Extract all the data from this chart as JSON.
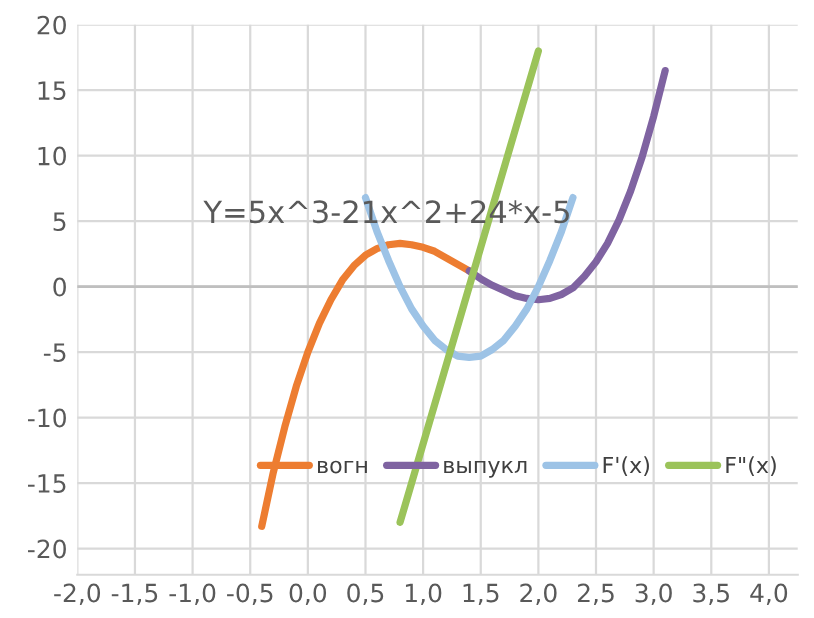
{
  "chart_data": {
    "type": "line",
    "annotations": [
      "Y=5x^3-21x^2+24*x-5"
    ],
    "xlim": [
      -2,
      4.25
    ],
    "ylim": [
      -22,
      20
    ],
    "xticks": [
      {
        "value": -2,
        "label": "-2,0"
      },
      {
        "value": -1.5,
        "label": "-1,5"
      },
      {
        "value": -1,
        "label": "-1,0"
      },
      {
        "value": -0.5,
        "label": "-0,5"
      },
      {
        "value": 0,
        "label": "0,0"
      },
      {
        "value": 0.5,
        "label": "0,5"
      },
      {
        "value": 1,
        "label": "1,0"
      },
      {
        "value": 1.5,
        "label": "1,5"
      },
      {
        "value": 2,
        "label": "2,0"
      },
      {
        "value": 2.5,
        "label": "2,5"
      },
      {
        "value": 3,
        "label": "3,0"
      },
      {
        "value": 3.5,
        "label": "3,5"
      },
      {
        "value": 4,
        "label": "4,0"
      }
    ],
    "yticks": [
      -20,
      -15,
      -10,
      -5,
      0,
      5,
      10,
      15,
      20
    ],
    "grid": true,
    "legend": "bottom right",
    "marker": "none",
    "line_style": "solid",
    "series": [
      {
        "name": "вогн",
        "color": "#ed7d31",
        "x": [
          -0.4,
          -0.3,
          -0.2,
          -0.1,
          0,
          0.1,
          0.2,
          0.3,
          0.4,
          0.5,
          0.6,
          0.7,
          0.8,
          0.9,
          1.0,
          1.1,
          1.2,
          1.3,
          1.4
        ],
        "values": [
          -18.3,
          -14.2,
          -10.7,
          -7.6,
          -5,
          -2.8,
          -1.0,
          0.5,
          1.6,
          2.4,
          2.9,
          3.2,
          3.3,
          3.2,
          3.0,
          2.7,
          2.2,
          1.7,
          1.2
        ]
      },
      {
        "name": "выпукл",
        "color": "#7f63a1",
        "x": [
          1.4,
          1.5,
          1.6,
          1.7,
          1.8,
          1.9,
          2.0,
          2.1,
          2.2,
          2.3,
          2.4,
          2.5,
          2.6,
          2.7,
          2.8,
          2.9,
          3.0,
          3.1
        ],
        "values": [
          1.2,
          0.6,
          0.1,
          -0.3,
          -0.7,
          -0.9,
          -1.0,
          -0.9,
          -0.6,
          -0.1,
          0.8,
          1.9,
          3.3,
          5.1,
          7.3,
          9.9,
          13.0,
          16.5
        ]
      },
      {
        "name": "F'(x)",
        "color": "#9dc3e6",
        "x": [
          0.5,
          0.6,
          0.7,
          0.8,
          0.9,
          1.0,
          1.1,
          1.2,
          1.3,
          1.4,
          1.5,
          1.6,
          1.7,
          1.8,
          1.9,
          2.0,
          2.1,
          2.2,
          2.3
        ],
        "values": [
          6.8,
          4.2,
          2.0,
          0,
          -1.7,
          -3.0,
          -4.1,
          -4.8,
          -5.3,
          -5.4,
          -5.3,
          -4.8,
          -4.1,
          -3.0,
          -1.7,
          0,
          2.0,
          4.2,
          6.8
        ]
      },
      {
        "name": "F\"(x)",
        "color": "#9bc35a",
        "x": [
          0.8,
          1.4,
          2.0
        ],
        "values": [
          -18,
          0,
          18
        ]
      }
    ]
  }
}
